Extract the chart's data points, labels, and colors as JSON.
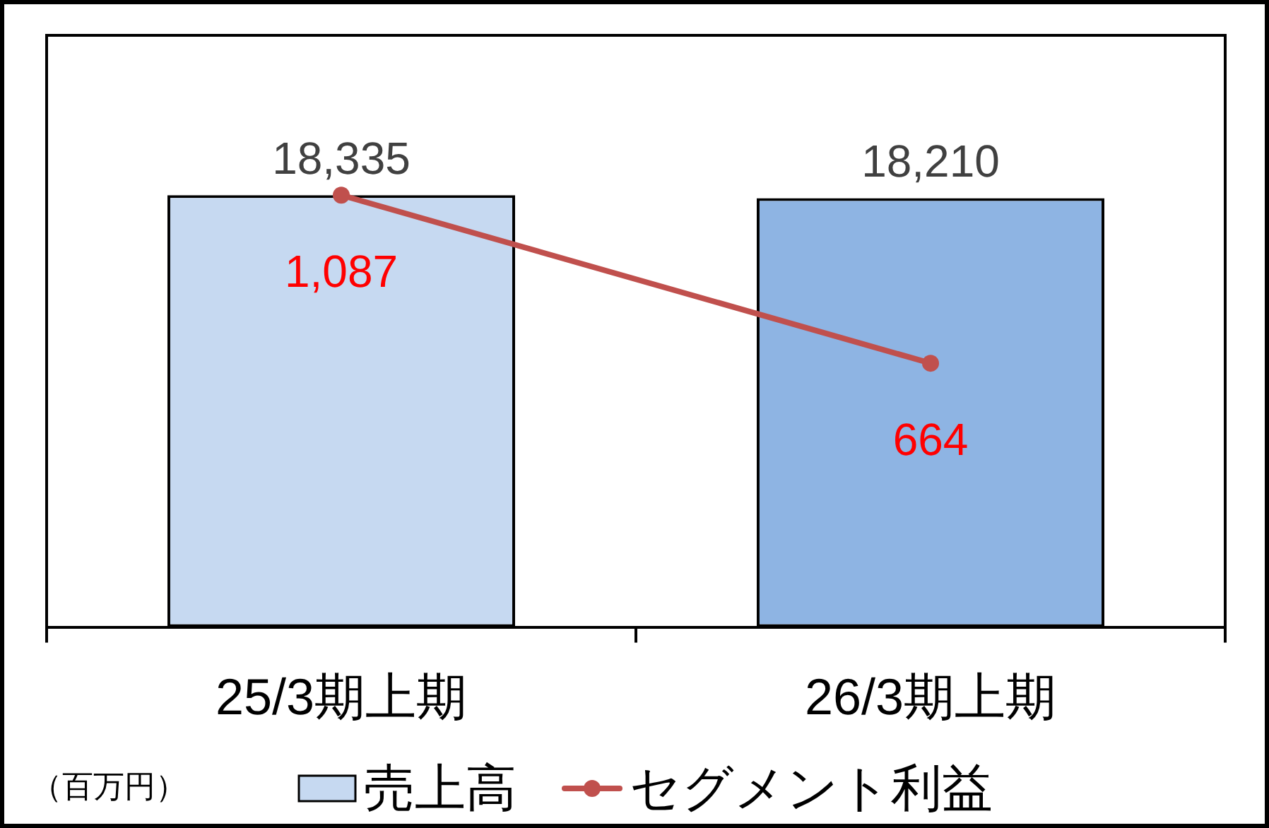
{
  "chart_data": {
    "type": "bar",
    "categories": [
      "25/3期上期",
      "26/3期上期"
    ],
    "series": [
      {
        "name": "売上高",
        "color": "#c6d9f1",
        "colors": [
          "#c6d9f1",
          "#8eb4e3"
        ],
        "values": [
          18335,
          18210
        ],
        "value_labels": [
          "18,335",
          "18,210"
        ]
      },
      {
        "name": "セグメント利益",
        "type": "line",
        "axis": "y2",
        "color": "#c0504d",
        "values": [
          1087,
          664
        ],
        "value_labels": [
          "1,087",
          "664"
        ]
      }
    ],
    "tick_labels": "x",
    "marker": "circle",
    "grid": false,
    "legend": "bottom",
    "annotations": [
      "（百万円）"
    ]
  }
}
